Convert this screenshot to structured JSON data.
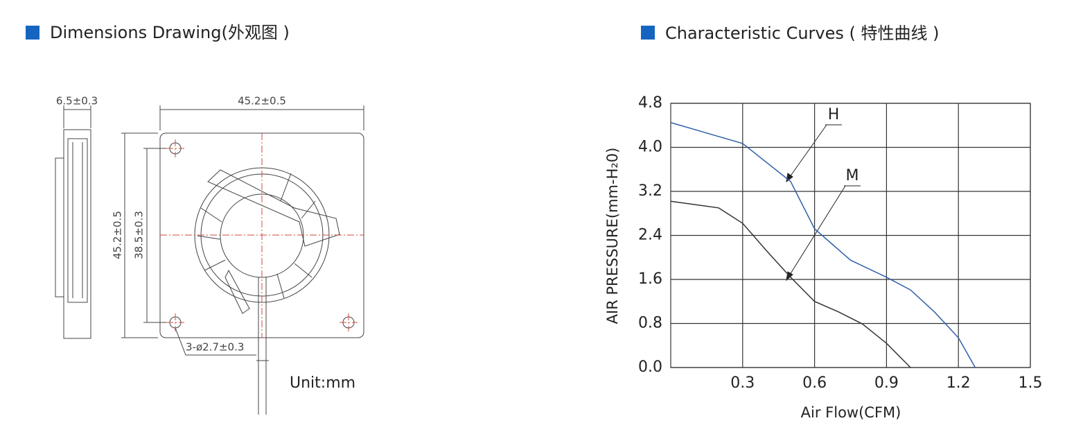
{
  "dimensions": {
    "title": "Dimensions Drawing(外观图 )",
    "labels": [
      "6.5±0.3",
      "45.2±0.5",
      "45.2±0.5",
      "38.5±0.3",
      "3-ø2.7±0.3"
    ],
    "unit": "Unit:mm"
  },
  "chart_data": {
    "type": "line",
    "title": "Characteristic Curves ( 特性曲线 )",
    "x_label": "Air Flow(CFM)",
    "y_label": "AIR PRESSURE(mm-H₂0)",
    "xlim": [
      0,
      1.5
    ],
    "xticks": [
      0.3,
      0.6,
      0.9,
      1.2,
      1.5
    ],
    "ylim": [
      0,
      4.8
    ],
    "yticks": [
      {
        "value": 0,
        "label": "0.0"
      },
      0.8,
      1.6,
      2.4,
      3.2,
      {
        "value": 4,
        "label": "4.0"
      },
      4.8
    ],
    "grid": true,
    "series": [
      {
        "name": "H",
        "color": "#2f5fa8",
        "x": [
          0,
          0.3,
          0.5,
          0.6,
          0.75,
          0.9,
          1.0,
          1.1,
          1.2,
          1.27
        ],
        "values": [
          4.45,
          4.07,
          3.38,
          2.52,
          1.95,
          1.64,
          1.41,
          1.01,
          0.54,
          0
        ]
      },
      {
        "name": "M",
        "color": "#333333",
        "x": [
          0,
          0.2,
          0.3,
          0.4,
          0.5,
          0.6,
          0.7,
          0.8,
          0.9,
          1.0
        ],
        "values": [
          3.02,
          2.9,
          2.62,
          2.12,
          1.64,
          1.2,
          1.01,
          0.79,
          0.44,
          0
        ]
      }
    ]
  }
}
